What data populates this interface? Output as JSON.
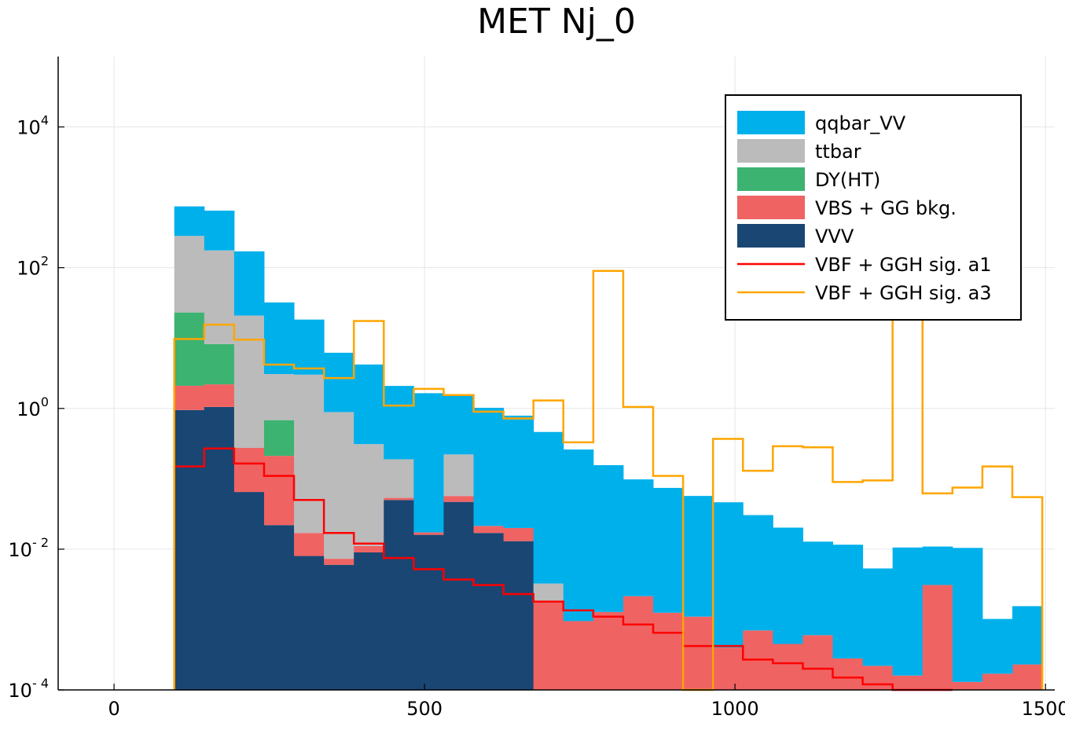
{
  "chart_data": {
    "type": "bar",
    "title": "MET Nj_0",
    "xlabel": "",
    "ylabel": "",
    "x_range": [
      -90,
      1515
    ],
    "y_scale": "log10",
    "y_range_exponent": [
      -4,
      5
    ],
    "x_ticks": [
      {
        "value": 0,
        "label": "0"
      },
      {
        "value": 500,
        "label": "500"
      },
      {
        "value": 1000,
        "label": "1000"
      },
      {
        "value": 1500,
        "label": "1500"
      }
    ],
    "y_ticks": [
      {
        "exp": -4,
        "base": "10",
        "sup": "- 4"
      },
      {
        "exp": -2,
        "base": "10",
        "sup": "- 2"
      },
      {
        "exp": 0,
        "base": "10",
        "sup": "0"
      },
      {
        "exp": 2,
        "base": "10",
        "sup": "2"
      },
      {
        "exp": 4,
        "base": "10",
        "sup": "4"
      }
    ],
    "grid": true,
    "legend_position": "top-right",
    "bin_start": 97,
    "bin_width": 48.2,
    "stacked_series": [
      {
        "name": "VVV",
        "color": "#1a4673",
        "values": [
          0.95,
          1.05,
          0.065,
          0.022,
          0.008,
          0.006,
          0.009,
          0.05,
          0.016,
          0.047,
          0.017,
          0.013,
          0,
          0,
          0,
          0,
          0,
          0,
          0,
          0,
          0,
          0,
          0,
          0,
          0,
          0,
          0,
          0,
          0
        ]
      },
      {
        "name": "VBS + GG bkg.",
        "color": "#ef6363",
        "values": [
          1.15,
          1.15,
          0.21,
          0.19,
          0.009,
          0.0013,
          0.0021,
          0.0036,
          0.0013,
          0.01,
          0.0044,
          0.007,
          0.00175,
          0.00095,
          0.00128,
          0.00215,
          0.00125,
          0.0011,
          0.0004,
          0.0007,
          0.00045,
          0.0006,
          0.00028,
          0.00022,
          0.00016,
          0.0031,
          0.00013,
          0.00017,
          0.00023
        ]
      },
      {
        "name": "DY(HT)",
        "color": "#3cb371",
        "values": [
          21,
          6,
          0,
          0.47,
          0,
          0,
          0,
          0,
          0,
          0,
          0,
          0,
          0,
          0,
          0,
          0,
          0,
          0,
          0,
          0,
          0,
          0,
          0,
          0,
          0,
          0,
          0,
          0,
          0
        ]
      },
      {
        "name": "ttbar",
        "color": "#bbbbbb",
        "values": [
          260,
          168,
          20.6,
          2.4,
          3.0,
          0.88,
          0.3,
          0.136,
          0,
          0.165,
          0,
          0,
          0.0015,
          0,
          0,
          0,
          0,
          0,
          0,
          0,
          0,
          0,
          0,
          0,
          0,
          0,
          0,
          0,
          0
        ]
      },
      {
        "name": "qqbar_VV",
        "color": "#00b0eb",
        "values": [
          460,
          470,
          150,
          29,
          15.3,
          5.3,
          3.9,
          1.9,
          1.63,
          1.3,
          1.0,
          0.77,
          0.46,
          0.26,
          0.155,
          0.096,
          0.073,
          0.056,
          0.046,
          0.0298,
          0.0198,
          0.0122,
          0.0113,
          0.0051,
          0.0104,
          0.0078,
          0.0103,
          0,
          0
        ]
      }
    ],
    "stacked_tail": [
      {
        "series": "qqbar_VV",
        "bins": [
          27,
          28
        ],
        "values": [
          0.00085,
          0.00132
        ]
      }
    ],
    "line_series": [
      {
        "name": "VBF + GGH sig. a1",
        "color": "#ff0000",
        "values": [
          0.15,
          0.27,
          0.165,
          0.11,
          0.05,
          0.017,
          0.012,
          0.0075,
          0.0052,
          0.0037,
          0.0031,
          0.0023,
          0.0018,
          0.00135,
          0.0011,
          0.00085,
          0.00065,
          0.00042,
          0.00042,
          0.00027,
          0.00024,
          0.0002,
          0.00015,
          0.00012,
          0.0001,
          0,
          0,
          0,
          0
        ]
      },
      {
        "name": "VBF + GGH sig. a3",
        "color": "#ffa500",
        "values": [
          9.7,
          15.5,
          9.5,
          4.2,
          3.7,
          2.7,
          17.5,
          1.1,
          1.9,
          1.55,
          0.9,
          0.72,
          1.3,
          0.33,
          90,
          1.05,
          0.11,
          0.0001,
          0.37,
          0.13,
          0.29,
          0.28,
          0.09,
          0.095,
          250,
          0.062,
          0.075,
          0.15,
          0.055
        ]
      }
    ]
  }
}
